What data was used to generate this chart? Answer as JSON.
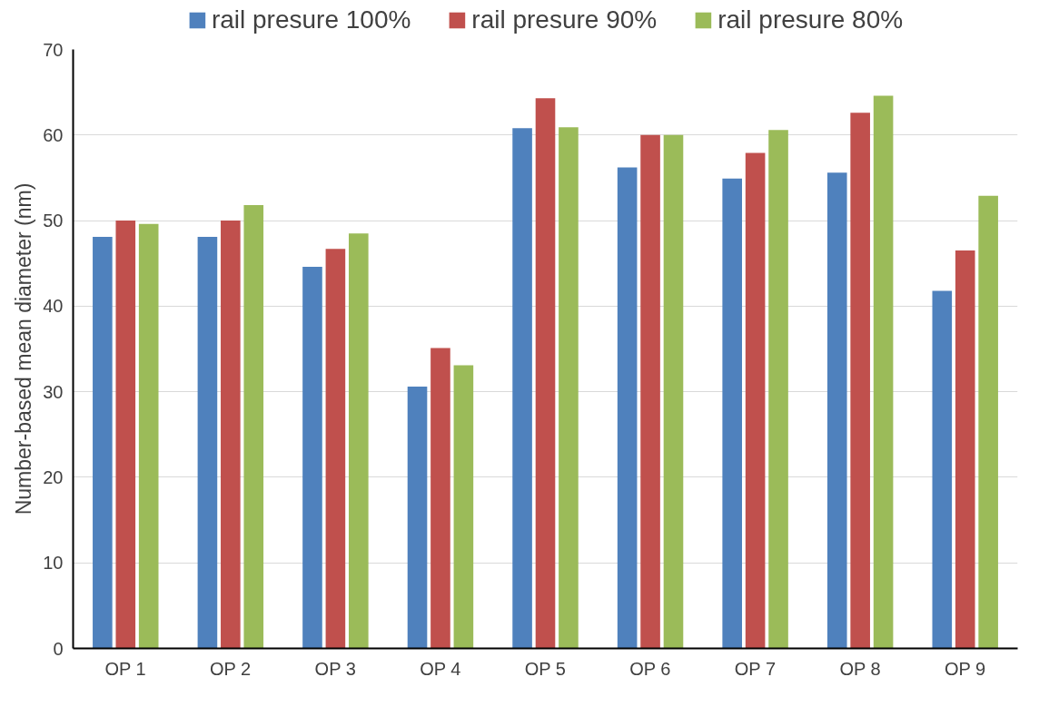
{
  "chart_data": {
    "type": "bar",
    "ylabel": "Number-based mean diameter (nm)",
    "categories": [
      "OP 1",
      "OP 2",
      "OP 3",
      "OP 4",
      "OP 5",
      "OP 6",
      "OP 7",
      "OP 8",
      "OP 9"
    ],
    "series": [
      {
        "name": "rail presure 100%",
        "color": "#4f81bd",
        "values": [
          48.1,
          48.1,
          44.6,
          30.6,
          60.8,
          56.2,
          54.9,
          55.6,
          41.8
        ]
      },
      {
        "name": "rail presure 90%",
        "color": "#c0504d",
        "values": [
          50.0,
          50.0,
          46.7,
          35.1,
          64.3,
          60.0,
          57.9,
          62.6,
          46.5
        ]
      },
      {
        "name": "rail presure 80%",
        "color": "#9bbb59",
        "values": [
          49.6,
          51.8,
          48.5,
          33.1,
          60.9,
          60.0,
          60.6,
          64.6,
          52.9
        ]
      }
    ],
    "ylim": [
      0,
      70
    ],
    "yticks": [
      0,
      10,
      20,
      30,
      40,
      50,
      60,
      70
    ],
    "grid": "y",
    "legend": "top"
  }
}
